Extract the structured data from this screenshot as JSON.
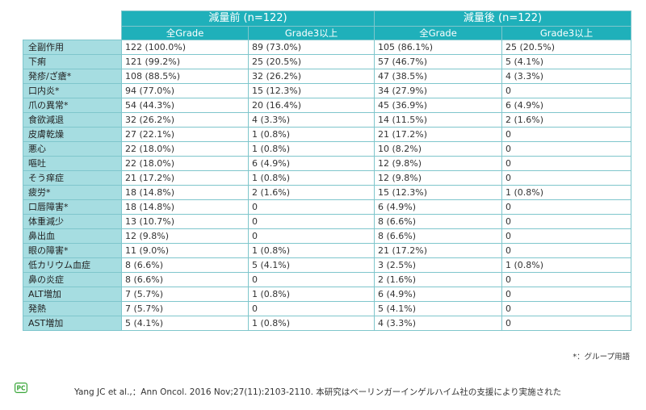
{
  "table": {
    "groups": [
      "減量前 (n=122)",
      "減量後 (n=122)"
    ],
    "subheaders": [
      "全Grade",
      "Grade3以上",
      "全Grade",
      "Grade3以上"
    ],
    "rows": [
      {
        "label": "全副作用",
        "cells": [
          "122 (100.0%)",
          "89 (73.0%)",
          "105 (86.1%)",
          "25 (20.5%)"
        ]
      },
      {
        "label": "下痢",
        "cells": [
          "121 (99.2%)",
          "25 (20.5%)",
          "57 (46.7%)",
          "5 (4.1%)"
        ]
      },
      {
        "label": "発疹/ざ瘡*",
        "cells": [
          "108 (88.5%)",
          "32 (26.2%)",
          "47 (38.5%)",
          "4 (3.3%)"
        ]
      },
      {
        "label": "口内炎*",
        "cells": [
          "94 (77.0%)",
          "15 (12.3%)",
          "34 (27.9%)",
          "0"
        ]
      },
      {
        "label": "爪の異常*",
        "cells": [
          "54 (44.3%)",
          "20 (16.4%)",
          "45 (36.9%)",
          "6 (4.9%)"
        ]
      },
      {
        "label": "食欲減退",
        "cells": [
          "32 (26.2%)",
          "4 (3.3%)",
          "14 (11.5%)",
          "2 (1.6%)"
        ]
      },
      {
        "label": "皮膚乾燥",
        "cells": [
          "27 (22.1%)",
          "1 (0.8%)",
          "21 (17.2%)",
          "0"
        ]
      },
      {
        "label": "悪心",
        "cells": [
          "22 (18.0%)",
          "1 (0.8%)",
          "10 (8.2%)",
          "0"
        ]
      },
      {
        "label": "嘔吐",
        "cells": [
          "22 (18.0%)",
          "6 (4.9%)",
          "12 (9.8%)",
          "0"
        ]
      },
      {
        "label": "そう痒症",
        "cells": [
          "21 (17.2%)",
          "1 (0.8%)",
          "12 (9.8%)",
          "0"
        ]
      },
      {
        "label": "疲労*",
        "cells": [
          "18 (14.8%)",
          "2 (1.6%)",
          "15 (12.3%)",
          "1 (0.8%)"
        ]
      },
      {
        "label": "口唇障害*",
        "cells": [
          "18 (14.8%)",
          "0",
          "6 (4.9%)",
          "0"
        ]
      },
      {
        "label": "体重減少",
        "cells": [
          "13 (10.7%)",
          "0",
          "8 (6.6%)",
          "0"
        ]
      },
      {
        "label": "鼻出血",
        "cells": [
          "12 (9.8%)",
          "0",
          "8 (6.6%)",
          "0"
        ]
      },
      {
        "label": "眼の障害*",
        "cells": [
          "11 (9.0%)",
          "1 (0.8%)",
          "21 (17.2%)",
          "0"
        ]
      },
      {
        "label": "低カリウム血症",
        "cells": [
          "8 (6.6%)",
          "5 (4.1%)",
          "3 (2.5%)",
          "1 (0.8%)"
        ]
      },
      {
        "label": "鼻の炎症",
        "cells": [
          "8 (6.6%)",
          "0",
          "2 (1.6%)",
          "0"
        ]
      },
      {
        "label": "ALT増加",
        "cells": [
          "7 (5.7%)",
          "1 (0.8%)",
          "6 (4.9%)",
          "0"
        ]
      },
      {
        "label": "発熱",
        "cells": [
          "7 (5.7%)",
          "0",
          "5 (4.1%)",
          "0"
        ]
      },
      {
        "label": "AST増加",
        "cells": [
          "5 (4.1%)",
          "1 (0.8%)",
          "4 (3.3%)",
          "0"
        ]
      }
    ]
  },
  "footnote": "*：グループ用語",
  "logo": {
    "text": "PC",
    "color": "#3aa63a"
  },
  "citation": "Yang JC et al.,：Ann Oncol. 2016 Nov;27(11):2103-2110. 本研究はベーリンガーインゲルハイム社の支援により実施された",
  "colors": {
    "header": "#1fb0ba",
    "label_bg": "#a6dde1",
    "border": "#7fc6cc"
  }
}
